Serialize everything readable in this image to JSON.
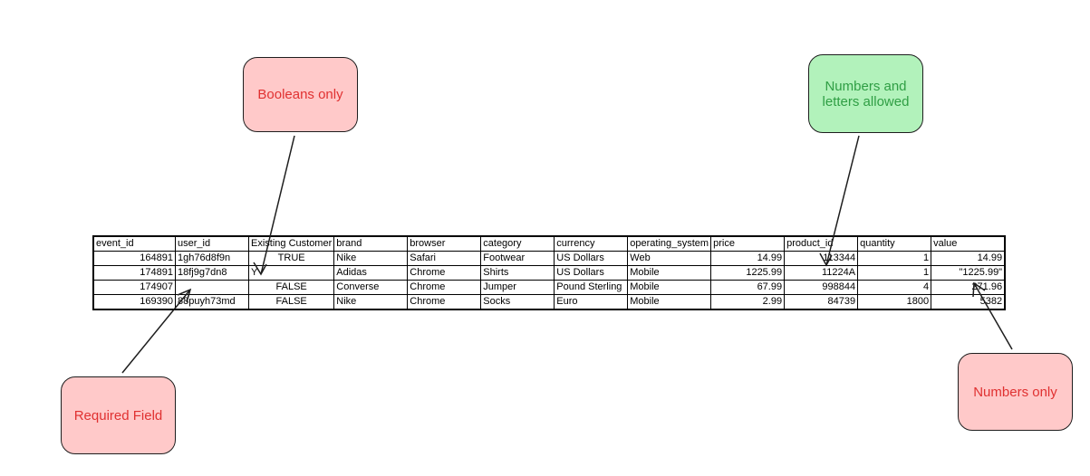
{
  "table": {
    "columns": [
      "event_id",
      "user_id",
      "Existing Customer",
      "brand",
      "browser",
      "category",
      "currency",
      "operating_system",
      "price",
      "product_id",
      "quantity",
      "value"
    ],
    "rows": [
      [
        "164891",
        "1gh76d8f9n",
        "TRUE",
        "Nike",
        "Safari",
        "Footwear",
        "US Dollars",
        "Web",
        "14.99",
        "113344",
        "1",
        "14.99"
      ],
      [
        "174891",
        "18fj9g7dn8",
        "Y",
        "Adidas",
        "Chrome",
        "Shirts",
        "US Dollars",
        "Mobile",
        "1225.99",
        "11224A",
        "1",
        "\"1225.99\""
      ],
      [
        "174907",
        null,
        "FALSE",
        "Converse",
        "Chrome",
        "Jumper",
        "Pound Sterling",
        "Mobile",
        "67.99",
        "998844",
        "4",
        "271.96"
      ],
      [
        "169390",
        "88puyh73md",
        "FALSE",
        "Nike",
        "Chrome",
        "Socks",
        "Euro",
        "Mobile",
        "2.99",
        "84739",
        "1800",
        "5382"
      ]
    ]
  },
  "annotations": [
    {
      "label": "Booleans only"
    },
    {
      "label": "Numbers and letters allowed"
    },
    {
      "label": "Required Field"
    },
    {
      "label": "Numbers only"
    }
  ]
}
